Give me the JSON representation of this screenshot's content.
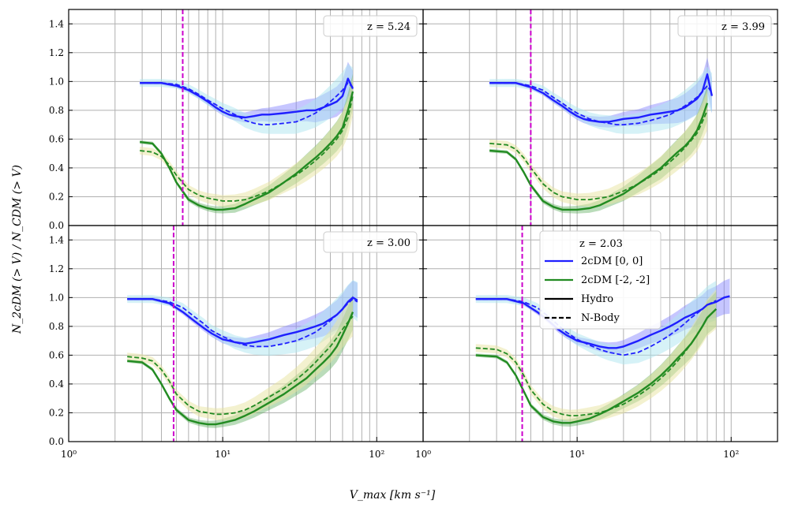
{
  "chart_data": {
    "type": "line",
    "xlabel": "V_max [km s⁻¹]",
    "ylabel": "N_2cDM (> V) / N_CDM (> V)",
    "xscale": "log",
    "xlim": [
      1,
      200
    ],
    "ylim": [
      0,
      1.5
    ],
    "x_ticks": [
      1,
      10,
      100
    ],
    "x_tick_labels": [
      "10⁰",
      "10¹",
      "10²"
    ],
    "y_ticks": [
      0.0,
      0.2,
      0.4,
      0.6,
      0.8,
      1.0,
      1.2,
      1.4
    ],
    "y_tick_labels": [
      "0.0",
      "0.2",
      "0.4",
      "0.6",
      "0.8",
      "1.0",
      "1.2",
      "1.4"
    ],
    "grid": true,
    "colors": {
      "blue": "#1f1fff",
      "green": "#228b22",
      "blue_band": "#8080ff",
      "cyan_band": "#aee6f0",
      "green_band": "#66b266",
      "yellow_band": "#e8e4a0",
      "vline": "#cc00cc"
    },
    "legend": {
      "placement": "upper-center of panel 4",
      "entries": [
        {
          "label": "2cDM [0, 0]",
          "color": "#1f1fff",
          "style": "solid"
        },
        {
          "label": "2cDM [-2, -2]",
          "color": "#228b22",
          "style": "solid"
        },
        {
          "label": "Hydro",
          "color": "#000000",
          "style": "solid"
        },
        {
          "label": "N-Body",
          "color": "#000000",
          "style": "dashed"
        }
      ]
    },
    "panels": [
      {
        "label": "z = 5.24",
        "vline": 5.5,
        "series": [
          {
            "model": "2cDM [0, 0]",
            "kind": "Hydro",
            "x": [
              2.9,
              4,
              5,
              6,
              7,
              8,
              9,
              10,
              11,
              12,
              14,
              16,
              18,
              20,
              25,
              30,
              35,
              40,
              45,
              50,
              55,
              60,
              65,
              70
            ],
            "y": [
              0.99,
              0.99,
              0.97,
              0.94,
              0.9,
              0.86,
              0.82,
              0.79,
              0.77,
              0.76,
              0.75,
              0.76,
              0.77,
              0.77,
              0.78,
              0.79,
              0.8,
              0.8,
              0.82,
              0.84,
              0.86,
              0.9,
              1.02,
              0.95
            ]
          },
          {
            "model": "2cDM [0, 0]",
            "kind": "N-Body",
            "x": [
              2.9,
              4,
              5,
              6,
              7,
              8,
              9,
              10,
              11,
              12,
              14,
              16,
              18,
              20,
              25,
              30,
              35,
              40,
              45,
              50,
              55,
              60,
              65,
              70
            ],
            "y": [
              0.99,
              0.99,
              0.98,
              0.95,
              0.91,
              0.87,
              0.84,
              0.81,
              0.79,
              0.77,
              0.73,
              0.71,
              0.7,
              0.7,
              0.71,
              0.72,
              0.75,
              0.78,
              0.82,
              0.86,
              0.9,
              0.94,
              0.99,
              0.96
            ]
          },
          {
            "model": "2cDM [-2, -2]",
            "kind": "Hydro",
            "x": [
              2.9,
              3.5,
              4,
              4.5,
              5,
              6,
              7,
              8,
              9,
              10,
              12,
              14,
              16,
              20,
              25,
              30,
              35,
              40,
              45,
              50,
              55,
              60,
              65,
              70
            ],
            "y": [
              0.58,
              0.57,
              0.5,
              0.4,
              0.3,
              0.18,
              0.14,
              0.12,
              0.11,
              0.11,
              0.12,
              0.15,
              0.18,
              0.23,
              0.3,
              0.36,
              0.42,
              0.47,
              0.52,
              0.57,
              0.62,
              0.68,
              0.8,
              0.93
            ]
          },
          {
            "model": "2cDM [-2, -2]",
            "kind": "N-Body",
            "x": [
              2.9,
              3.5,
              4,
              4.5,
              5,
              6,
              7,
              8,
              9,
              10,
              12,
              14,
              16,
              20,
              25,
              30,
              35,
              40,
              45,
              50,
              55,
              60,
              65,
              70
            ],
            "y": [
              0.52,
              0.51,
              0.48,
              0.42,
              0.35,
              0.25,
              0.21,
              0.19,
              0.18,
              0.17,
              0.17,
              0.18,
              0.2,
              0.24,
              0.3,
              0.35,
              0.4,
              0.45,
              0.5,
              0.55,
              0.6,
              0.66,
              0.75,
              0.9
            ]
          }
        ]
      },
      {
        "label": "z = 3.99",
        "vline": 5.0,
        "series": [
          {
            "model": "2cDM [0, 0]",
            "kind": "Hydro",
            "x": [
              2.7,
              4,
              5,
              6,
              7,
              8,
              9,
              10,
              11,
              12,
              14,
              16,
              18,
              20,
              25,
              30,
              35,
              40,
              45,
              50,
              55,
              60,
              65,
              70,
              75
            ],
            "y": [
              0.99,
              0.99,
              0.96,
              0.92,
              0.87,
              0.83,
              0.79,
              0.76,
              0.74,
              0.73,
              0.72,
              0.72,
              0.73,
              0.74,
              0.75,
              0.77,
              0.78,
              0.79,
              0.8,
              0.82,
              0.85,
              0.88,
              0.93,
              1.05,
              0.9
            ]
          },
          {
            "model": "2cDM [0, 0]",
            "kind": "N-Body",
            "x": [
              2.7,
              4,
              5,
              6,
              7,
              8,
              9,
              10,
              11,
              12,
              14,
              16,
              18,
              20,
              25,
              30,
              35,
              40,
              45,
              50,
              55,
              60,
              65,
              70,
              75
            ],
            "y": [
              0.99,
              0.99,
              0.97,
              0.94,
              0.89,
              0.85,
              0.81,
              0.78,
              0.76,
              0.74,
              0.72,
              0.71,
              0.7,
              0.7,
              0.71,
              0.73,
              0.75,
              0.77,
              0.8,
              0.83,
              0.86,
              0.89,
              0.93,
              0.97,
              0.92
            ]
          },
          {
            "model": "2cDM [-2, -2]",
            "kind": "Hydro",
            "x": [
              2.7,
              3.5,
              4,
              4.5,
              5,
              6,
              7,
              8,
              9,
              10,
              12,
              14,
              16,
              20,
              25,
              30,
              35,
              40,
              45,
              50,
              55,
              60,
              65,
              70
            ],
            "y": [
              0.52,
              0.51,
              0.46,
              0.37,
              0.28,
              0.17,
              0.13,
              0.11,
              0.11,
              0.11,
              0.12,
              0.14,
              0.17,
              0.22,
              0.29,
              0.35,
              0.4,
              0.46,
              0.51,
              0.55,
              0.6,
              0.66,
              0.75,
              0.85
            ]
          },
          {
            "model": "2cDM [-2, -2]",
            "kind": "N-Body",
            "x": [
              2.7,
              3.5,
              4,
              4.5,
              5,
              6,
              7,
              8,
              9,
              10,
              12,
              14,
              16,
              20,
              25,
              30,
              35,
              40,
              45,
              50,
              55,
              60,
              65,
              70
            ],
            "y": [
              0.57,
              0.56,
              0.53,
              0.47,
              0.4,
              0.29,
              0.23,
              0.2,
              0.19,
              0.18,
              0.18,
              0.19,
              0.2,
              0.24,
              0.29,
              0.34,
              0.39,
              0.44,
              0.49,
              0.54,
              0.59,
              0.64,
              0.72,
              0.8
            ]
          }
        ]
      },
      {
        "label": "z = 3.00",
        "vline": 4.8,
        "series": [
          {
            "model": "2cDM [0, 0]",
            "kind": "Hydro",
            "x": [
              2.4,
              3.5,
              4.5,
              5.5,
              6.5,
              7.5,
              8.5,
              10,
              11,
              12,
              14,
              16,
              18,
              20,
              25,
              30,
              35,
              40,
              45,
              50,
              55,
              60,
              65,
              70,
              75
            ],
            "y": [
              0.99,
              0.99,
              0.96,
              0.9,
              0.84,
              0.79,
              0.75,
              0.71,
              0.7,
              0.69,
              0.68,
              0.69,
              0.7,
              0.71,
              0.74,
              0.76,
              0.78,
              0.8,
              0.82,
              0.85,
              0.88,
              0.92,
              0.97,
              1.0,
              0.98
            ]
          },
          {
            "model": "2cDM [0, 0]",
            "kind": "N-Body",
            "x": [
              2.4,
              3.5,
              4.5,
              5.5,
              6.5,
              7.5,
              8.5,
              10,
              11,
              12,
              14,
              16,
              18,
              20,
              25,
              30,
              35,
              40,
              45,
              50,
              55,
              60,
              65,
              70,
              75
            ],
            "y": [
              0.99,
              0.99,
              0.97,
              0.93,
              0.87,
              0.82,
              0.77,
              0.73,
              0.71,
              0.69,
              0.67,
              0.66,
              0.66,
              0.66,
              0.68,
              0.7,
              0.73,
              0.76,
              0.8,
              0.84,
              0.88,
              0.92,
              0.96,
              0.99,
              0.97
            ]
          },
          {
            "model": "2cDM [-2, -2]",
            "kind": "Hydro",
            "x": [
              2.4,
              3,
              3.5,
              4,
              4.5,
              5,
              6,
              7,
              8,
              9,
              10,
              12,
              14,
              16,
              20,
              25,
              30,
              35,
              40,
              45,
              50,
              55,
              60,
              65,
              70
            ],
            "y": [
              0.56,
              0.55,
              0.5,
              0.4,
              0.3,
              0.22,
              0.15,
              0.13,
              0.12,
              0.12,
              0.13,
              0.15,
              0.18,
              0.21,
              0.27,
              0.33,
              0.39,
              0.44,
              0.5,
              0.55,
              0.6,
              0.66,
              0.74,
              0.82,
              0.9
            ]
          },
          {
            "model": "2cDM [-2, -2]",
            "kind": "N-Body",
            "x": [
              2.4,
              3,
              3.5,
              4,
              4.5,
              5,
              6,
              7,
              8,
              9,
              10,
              12,
              14,
              16,
              20,
              25,
              30,
              35,
              40,
              45,
              50,
              55,
              60,
              65,
              70
            ],
            "y": [
              0.59,
              0.58,
              0.56,
              0.5,
              0.42,
              0.33,
              0.25,
              0.21,
              0.2,
              0.19,
              0.19,
              0.2,
              0.22,
              0.25,
              0.31,
              0.37,
              0.43,
              0.49,
              0.55,
              0.61,
              0.66,
              0.72,
              0.78,
              0.83,
              0.87
            ]
          }
        ]
      },
      {
        "label": "z = 2.03",
        "vline": 4.4,
        "series": [
          {
            "model": "2cDM [0, 0]",
            "kind": "Hydro",
            "x": [
              2.2,
              3.5,
              4.5,
              5.5,
              6.5,
              7.5,
              8.5,
              10,
              12,
              14,
              16,
              18,
              20,
              25,
              30,
              35,
              40,
              45,
              50,
              55,
              60,
              65,
              70,
              80,
              90,
              98
            ],
            "y": [
              0.99,
              0.99,
              0.96,
              0.9,
              0.84,
              0.78,
              0.74,
              0.7,
              0.68,
              0.66,
              0.65,
              0.65,
              0.66,
              0.7,
              0.74,
              0.77,
              0.8,
              0.83,
              0.86,
              0.88,
              0.9,
              0.92,
              0.95,
              0.97,
              1.0,
              1.01
            ]
          },
          {
            "model": "2cDM [0, 0]",
            "kind": "N-Body",
            "x": [
              2.2,
              3.5,
              4.5,
              5.5,
              6.5,
              7.5,
              8.5,
              10,
              12,
              14,
              16,
              18,
              20,
              25,
              30,
              35,
              40,
              45,
              50,
              55,
              60,
              65,
              70,
              80
            ],
            "y": [
              0.99,
              0.99,
              0.97,
              0.93,
              0.87,
              0.81,
              0.76,
              0.71,
              0.67,
              0.64,
              0.62,
              0.61,
              0.6,
              0.62,
              0.66,
              0.7,
              0.74,
              0.78,
              0.82,
              0.86,
              0.89,
              0.92,
              0.95,
              0.98
            ]
          },
          {
            "model": "2cDM [-2, -2]",
            "kind": "Hydro",
            "x": [
              2.2,
              3,
              3.5,
              4,
              4.5,
              5,
              6,
              7,
              8,
              9,
              10,
              12,
              14,
              16,
              20,
              25,
              30,
              35,
              40,
              45,
              50,
              55,
              60,
              65,
              70,
              80
            ],
            "y": [
              0.6,
              0.59,
              0.55,
              0.46,
              0.35,
              0.25,
              0.17,
              0.14,
              0.13,
              0.13,
              0.14,
              0.16,
              0.19,
              0.22,
              0.28,
              0.34,
              0.4,
              0.46,
              0.52,
              0.58,
              0.63,
              0.68,
              0.74,
              0.8,
              0.86,
              0.92
            ]
          },
          {
            "model": "2cDM [-2, -2]",
            "kind": "N-Body",
            "x": [
              2.2,
              3,
              3.5,
              4,
              4.5,
              5,
              6,
              7,
              8,
              9,
              10,
              12,
              14,
              16,
              20,
              25,
              30,
              35,
              40,
              45,
              50,
              55,
              60,
              65,
              70,
              80
            ],
            "y": [
              0.65,
              0.64,
              0.61,
              0.55,
              0.46,
              0.36,
              0.26,
              0.21,
              0.19,
              0.18,
              0.18,
              0.19,
              0.2,
              0.22,
              0.26,
              0.32,
              0.38,
              0.44,
              0.5,
              0.56,
              0.62,
              0.68,
              0.74,
              0.8,
              0.86,
              0.92
            ]
          }
        ]
      }
    ]
  }
}
